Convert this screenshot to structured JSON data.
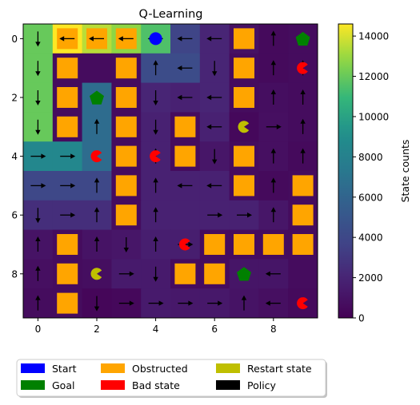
{
  "chart_data": {
    "type": "heatmap",
    "title": "Q-Learning",
    "colorbar_label": "State counts",
    "colormap": "viridis",
    "vmin": 0,
    "vmax": 14600,
    "xlim": [
      -0.5,
      9.5
    ],
    "ylim": [
      9.5,
      -0.5
    ],
    "x_ticks": [
      "0",
      "2",
      "4",
      "6",
      "8"
    ],
    "y_ticks": [
      "0",
      "2",
      "4",
      "6",
      "8"
    ],
    "colorbar_ticks": [
      "0",
      "2000",
      "4000",
      "6000",
      "8000",
      "10000",
      "12000",
      "14000"
    ],
    "grid": false,
    "values": [
      [
        12000,
        14600,
        13500,
        12800,
        11500,
        3800,
        2000,
        900,
        500,
        600
      ],
      [
        12000,
        600,
        600,
        600,
        4300,
        4300,
        2000,
        600,
        500,
        600
      ],
      [
        12000,
        600,
        6500,
        600,
        2000,
        1800,
        2000,
        600,
        700,
        600
      ],
      [
        12000,
        600,
        6500,
        600,
        1800,
        600,
        1800,
        400,
        800,
        600
      ],
      [
        8500,
        8500,
        6500,
        600,
        1800,
        600,
        1200,
        600,
        800,
        500
      ],
      [
        4000,
        4000,
        4000,
        600,
        1800,
        1800,
        1800,
        600,
        500,
        600
      ],
      [
        2500,
        2500,
        2500,
        600,
        1800,
        1800,
        1800,
        1800,
        1200,
        600
      ],
      [
        1000,
        600,
        1000,
        1200,
        1600,
        1600,
        600,
        600,
        600,
        600
      ],
      [
        800,
        600,
        700,
        1400,
        1400,
        600,
        600,
        1100,
        1100,
        600
      ],
      [
        600,
        600,
        300,
        400,
        1400,
        1300,
        1300,
        1000,
        800,
        500
      ]
    ],
    "obstructed": [
      [
        1,
        0
      ],
      [
        2,
        0
      ],
      [
        3,
        0
      ],
      [
        7,
        0
      ],
      [
        1,
        1
      ],
      [
        3,
        1
      ],
      [
        7,
        1
      ],
      [
        1,
        2
      ],
      [
        3,
        2
      ],
      [
        7,
        2
      ],
      [
        1,
        3
      ],
      [
        3,
        3
      ],
      [
        5,
        3
      ],
      [
        3,
        4
      ],
      [
        5,
        4
      ],
      [
        7,
        4
      ],
      [
        3,
        5
      ],
      [
        7,
        5
      ],
      [
        9,
        5
      ],
      [
        3,
        6
      ],
      [
        9,
        6
      ],
      [
        1,
        7
      ],
      [
        6,
        7
      ],
      [
        7,
        7
      ],
      [
        8,
        7
      ],
      [
        9,
        7
      ],
      [
        1,
        8
      ],
      [
        5,
        8
      ],
      [
        6,
        8
      ],
      [
        1,
        9
      ]
    ],
    "start": [
      [
        4,
        0
      ]
    ],
    "goals": [
      [
        9,
        0
      ],
      [
        2,
        2
      ],
      [
        7,
        8
      ]
    ],
    "bad_states": [
      [
        9,
        1
      ],
      [
        2,
        4
      ],
      [
        4,
        4
      ],
      [
        5,
        7
      ],
      [
        9,
        9
      ]
    ],
    "restart_states": [
      [
        7,
        3
      ],
      [
        2,
        8
      ]
    ],
    "policy": [
      [
        0,
        0,
        "down"
      ],
      [
        1,
        0,
        "left"
      ],
      [
        2,
        0,
        "left"
      ],
      [
        3,
        0,
        "left"
      ],
      [
        4,
        0,
        "left"
      ],
      [
        5,
        0,
        "left"
      ],
      [
        6,
        0,
        "left"
      ],
      [
        8,
        0,
        "up"
      ],
      [
        0,
        1,
        "down"
      ],
      [
        4,
        1,
        "up"
      ],
      [
        5,
        1,
        "left"
      ],
      [
        6,
        1,
        "down"
      ],
      [
        8,
        1,
        "up"
      ],
      [
        9,
        1,
        "up"
      ],
      [
        0,
        2,
        "down"
      ],
      [
        4,
        2,
        "down"
      ],
      [
        5,
        2,
        "left"
      ],
      [
        6,
        2,
        "left"
      ],
      [
        8,
        2,
        "up"
      ],
      [
        9,
        2,
        "up"
      ],
      [
        0,
        3,
        "down"
      ],
      [
        2,
        3,
        "up"
      ],
      [
        4,
        3,
        "down"
      ],
      [
        6,
        3,
        "left"
      ],
      [
        8,
        3,
        "right"
      ],
      [
        9,
        3,
        "up"
      ],
      [
        0,
        4,
        "right"
      ],
      [
        1,
        4,
        "right"
      ],
      [
        4,
        4,
        "up"
      ],
      [
        6,
        4,
        "down"
      ],
      [
        8,
        4,
        "up"
      ],
      [
        9,
        4,
        "up"
      ],
      [
        0,
        5,
        "right"
      ],
      [
        1,
        5,
        "right"
      ],
      [
        2,
        5,
        "up"
      ],
      [
        4,
        5,
        "up"
      ],
      [
        5,
        5,
        "left"
      ],
      [
        6,
        5,
        "left"
      ],
      [
        8,
        5,
        "up"
      ],
      [
        0,
        6,
        "down"
      ],
      [
        1,
        6,
        "right"
      ],
      [
        2,
        6,
        "up"
      ],
      [
        4,
        6,
        "up"
      ],
      [
        6,
        6,
        "right"
      ],
      [
        7,
        6,
        "right"
      ],
      [
        8,
        6,
        "up"
      ],
      [
        0,
        7,
        "up"
      ],
      [
        2,
        7,
        "up"
      ],
      [
        3,
        7,
        "down"
      ],
      [
        4,
        7,
        "up"
      ],
      [
        5,
        7,
        "right"
      ],
      [
        0,
        8,
        "up"
      ],
      [
        3,
        8,
        "right"
      ],
      [
        4,
        8,
        "down"
      ],
      [
        8,
        8,
        "left"
      ],
      [
        0,
        9,
        "up"
      ],
      [
        2,
        9,
        "down"
      ],
      [
        3,
        9,
        "right"
      ],
      [
        4,
        9,
        "right"
      ],
      [
        5,
        9,
        "right"
      ],
      [
        6,
        9,
        "right"
      ],
      [
        7,
        9,
        "up"
      ],
      [
        8,
        9,
        "left"
      ]
    ]
  },
  "legend": {
    "items": [
      {
        "label": "Start",
        "color": "#0000ff"
      },
      {
        "label": "Goal",
        "color": "#008000"
      },
      {
        "label": "Obstructed",
        "color": "#ffa500"
      },
      {
        "label": "Bad state",
        "color": "#ff0000"
      },
      {
        "label": "Restart state",
        "color": "#bfbf00"
      },
      {
        "label": "Policy",
        "color": "#000000"
      }
    ]
  },
  "colors": {
    "start": "#0000ff",
    "goal": "#008000",
    "obstructed": "#ffa500",
    "bad_state": "#ff0000",
    "restart_state": "#bfbf00",
    "policy": "#000000"
  }
}
